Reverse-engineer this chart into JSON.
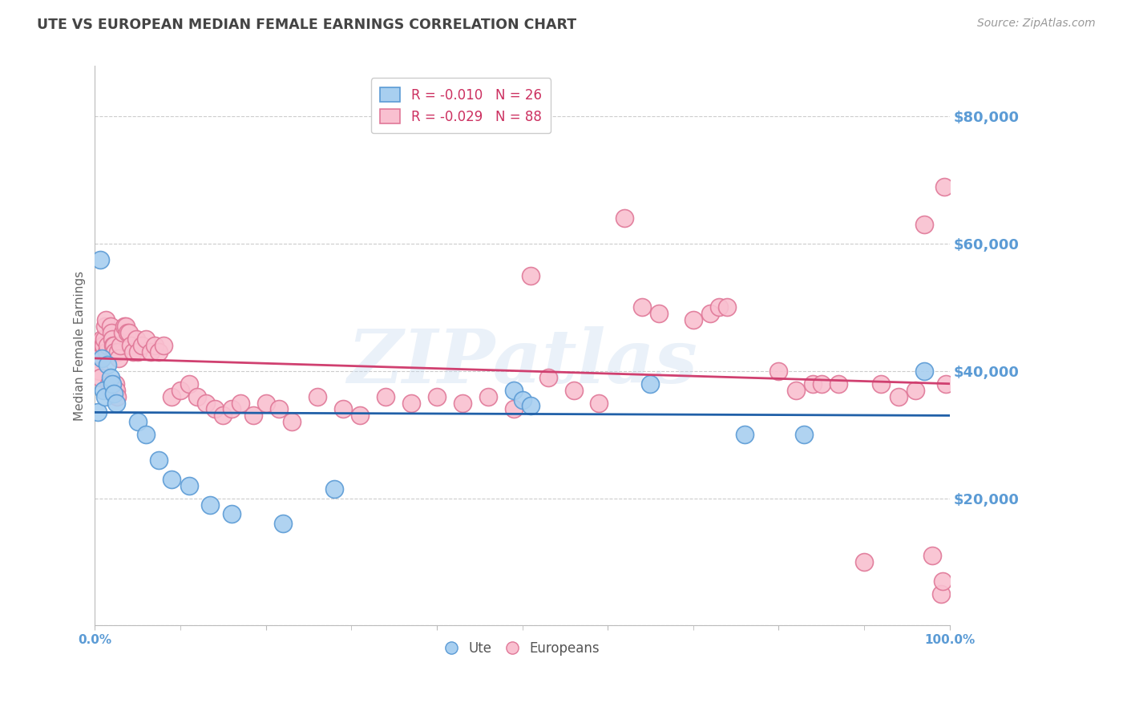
{
  "title": "UTE VS EUROPEAN MEDIAN FEMALE EARNINGS CORRELATION CHART",
  "source": "Source: ZipAtlas.com",
  "ylabel": "Median Female Earnings",
  "ymin": 0,
  "ymax": 88000,
  "xmin": 0.0,
  "xmax": 1.0,
  "ute_color": "#A8CFF0",
  "ute_edge_color": "#5B9BD5",
  "european_color": "#F9C0D0",
  "european_edge_color": "#E07898",
  "trend_ute_color": "#2060A8",
  "trend_euro_color": "#D04070",
  "legend_R_ute": "R = -0.010",
  "legend_N_ute": "N = 26",
  "legend_R_euro": "R = -0.029",
  "legend_N_euro": "N = 88",
  "legend_R_color": "#CC3060",
  "legend_N_color": "#3060CC",
  "watermark": "ZIPatlas",
  "background_color": "#FFFFFF",
  "grid_color": "#CCCCCC",
  "tick_label_color": "#5B9BD5",
  "title_color": "#444444",
  "ylabel_color": "#666666",
  "ute_x": [
    0.003,
    0.006,
    0.008,
    0.01,
    0.012,
    0.015,
    0.018,
    0.02,
    0.022,
    0.025,
    0.05,
    0.06,
    0.075,
    0.09,
    0.11,
    0.135,
    0.16,
    0.22,
    0.28,
    0.49,
    0.5,
    0.51,
    0.65,
    0.76,
    0.83,
    0.97
  ],
  "ute_y": [
    33500,
    57500,
    42000,
    37000,
    36000,
    41000,
    39000,
    38000,
    36500,
    35000,
    32000,
    30000,
    26000,
    23000,
    22000,
    19000,
    17500,
    16000,
    21500,
    37000,
    35500,
    34500,
    38000,
    30000,
    30000,
    40000
  ],
  "euro_x": [
    0.003,
    0.005,
    0.006,
    0.008,
    0.009,
    0.01,
    0.011,
    0.012,
    0.013,
    0.014,
    0.015,
    0.016,
    0.017,
    0.018,
    0.019,
    0.02,
    0.021,
    0.022,
    0.023,
    0.024,
    0.025,
    0.026,
    0.027,
    0.028,
    0.03,
    0.032,
    0.034,
    0.036,
    0.038,
    0.04,
    0.042,
    0.045,
    0.048,
    0.05,
    0.055,
    0.06,
    0.065,
    0.07,
    0.075,
    0.08,
    0.09,
    0.1,
    0.11,
    0.12,
    0.13,
    0.14,
    0.15,
    0.16,
    0.17,
    0.185,
    0.2,
    0.215,
    0.23,
    0.26,
    0.29,
    0.31,
    0.34,
    0.37,
    0.4,
    0.43,
    0.46,
    0.49,
    0.51,
    0.53,
    0.56,
    0.59,
    0.62,
    0.64,
    0.66,
    0.7,
    0.72,
    0.73,
    0.74,
    0.8,
    0.82,
    0.84,
    0.85,
    0.87,
    0.9,
    0.92,
    0.94,
    0.96,
    0.97,
    0.98,
    0.99,
    0.992,
    0.994,
    0.996
  ],
  "euro_y": [
    42000,
    40000,
    39000,
    45000,
    44000,
    44000,
    45000,
    47000,
    48000,
    43000,
    44000,
    38000,
    37000,
    47000,
    46000,
    45000,
    44000,
    44000,
    43000,
    38000,
    37000,
    36000,
    43000,
    42000,
    44000,
    46000,
    47000,
    47000,
    46000,
    46000,
    44000,
    43000,
    45000,
    43000,
    44000,
    45000,
    43000,
    44000,
    43000,
    44000,
    36000,
    37000,
    38000,
    36000,
    35000,
    34000,
    33000,
    34000,
    35000,
    33000,
    35000,
    34000,
    32000,
    36000,
    34000,
    33000,
    36000,
    35000,
    36000,
    35000,
    36000,
    34000,
    55000,
    39000,
    37000,
    35000,
    64000,
    50000,
    49000,
    48000,
    49000,
    50000,
    50000,
    40000,
    37000,
    38000,
    38000,
    38000,
    10000,
    38000,
    36000,
    37000,
    63000,
    11000,
    5000,
    7000,
    69000,
    38000
  ]
}
